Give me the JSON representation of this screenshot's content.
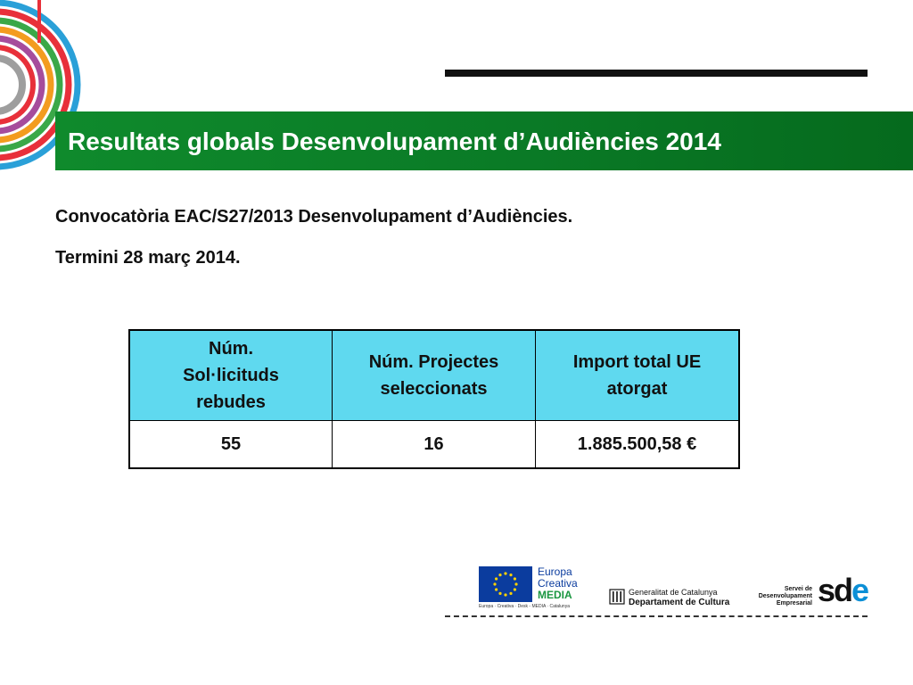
{
  "title": "Resultats globals Desenvolupament d’Audiències 2014",
  "subtitle": {
    "line1": "Convocatòria EAC/S27/2013 Desenvolupament d’Audiències.",
    "line2": "Termini 28 març 2014."
  },
  "table": {
    "headers": [
      "Núm. Sol·licituds rebudes",
      "Núm. Projectes seleccionats",
      "Import total UE atorgat"
    ],
    "header_lines": [
      [
        "Núm.",
        "Sol·licituds",
        "rebudes"
      ],
      [
        "Núm. Projectes",
        "seleccionats"
      ],
      [
        "Import total UE",
        "atorgat"
      ]
    ],
    "values": [
      "55",
      "16",
      "1.885.500,58 €"
    ]
  },
  "logos": {
    "europa_line1": "Europa",
    "europa_line2": "Creativa",
    "media": "MEDIA",
    "eu_caption": "Europa · Creativa · Desk - MEDIA · Catalunya",
    "generalitat_line1": "Generalitat de Catalunya",
    "generalitat_line2": "Departament de Cultura",
    "sde_line1": "Servei de",
    "sde_line2": "Desenvolupament",
    "sde_line3": "Empresarial",
    "sde_s": "sd",
    "sde_e": "e"
  },
  "colors": {
    "title_bar": "#0a7a26",
    "table_header": "#5fd9ef",
    "eu_blue": "#0b3c9e",
    "sde_blue": "#0c8fd6"
  }
}
